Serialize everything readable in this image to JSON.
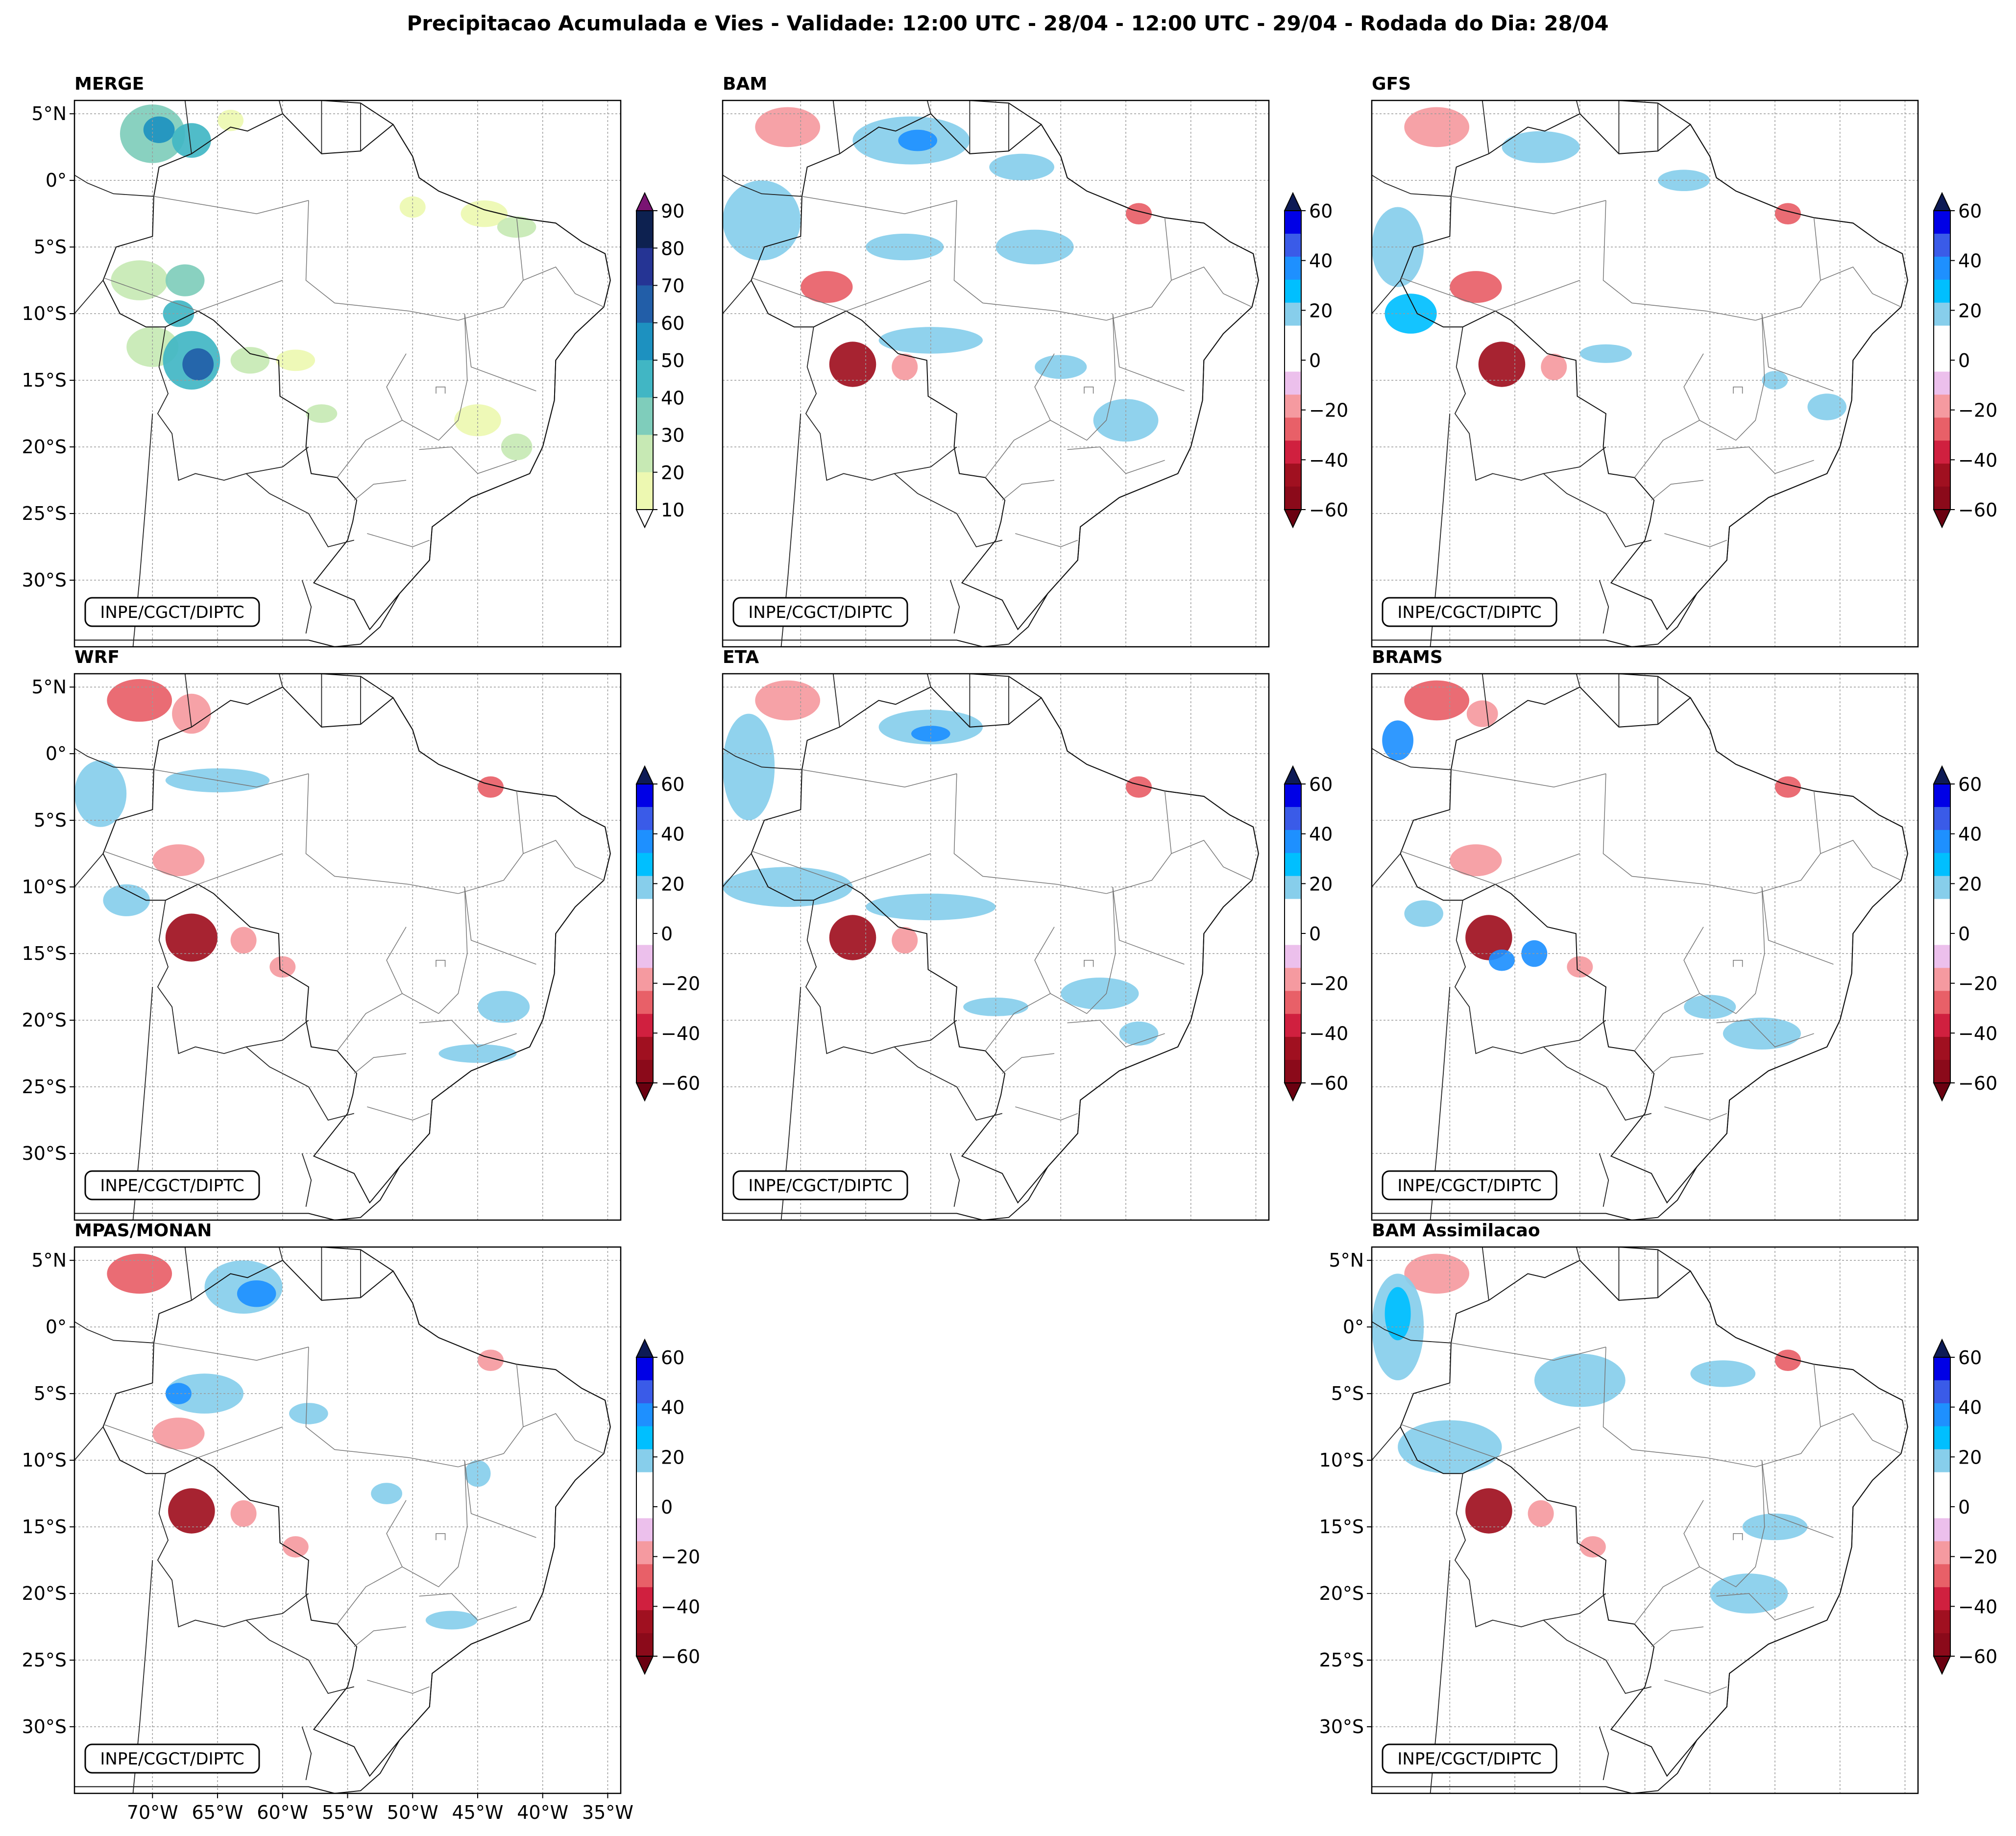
{
  "figure": {
    "title": "Precipitacao Acumulada e Vies - Validade: 12:00 UTC - 28/04 - 12:00 UTC - 29/04 - Rodada do Dia: 28/04",
    "credit": "INPE/CGCT/DIPTC"
  },
  "map_extent": {
    "lon": [
      -76,
      -34
    ],
    "lat": [
      6,
      -35
    ]
  },
  "lat_ticks": [
    {
      "value": 5,
      "label": "5°N"
    },
    {
      "value": 0,
      "label": "0°"
    },
    {
      "value": -5,
      "label": "5°S"
    },
    {
      "value": -10,
      "label": "10°S"
    },
    {
      "value": -15,
      "label": "15°S"
    },
    {
      "value": -20,
      "label": "20°S"
    },
    {
      "value": -25,
      "label": "25°S"
    },
    {
      "value": -30,
      "label": "30°S"
    }
  ],
  "lon_ticks": [
    {
      "value": -70,
      "label": "70°W"
    },
    {
      "value": -65,
      "label": "65°W"
    },
    {
      "value": -60,
      "label": "60°W"
    },
    {
      "value": -55,
      "label": "55°W"
    },
    {
      "value": -50,
      "label": "50°W"
    },
    {
      "value": -45,
      "label": "45°W"
    },
    {
      "value": -40,
      "label": "40°W"
    },
    {
      "value": -35,
      "label": "35°W"
    }
  ],
  "colorbars": {
    "precip": {
      "labels": [
        "90",
        "80",
        "70",
        "60",
        "50",
        "40",
        "30",
        "20",
        "10"
      ],
      "colors": [
        "#0d2150",
        "#253494",
        "#225ea8",
        "#1d91c0",
        "#41b6c4",
        "#7fcdbb",
        "#c7e9b4",
        "#edf8b1"
      ],
      "over": "#7a1473",
      "under": "#ffffff"
    },
    "bias": {
      "labels": [
        "60",
        "40",
        "20",
        "0",
        "−20",
        "−40",
        "−60"
      ],
      "colors": [
        "#0000e6",
        "#3a5be8",
        "#1e90ff",
        "#00bfff",
        "#87ceeb",
        "#ffffff",
        "#ffffff",
        "#ecc0ec",
        "#f59aa0",
        "#e86068",
        "#d0203f",
        "#a01020",
        "#8b0a1a"
      ],
      "over": "#0d1a55",
      "under": "#6a0010"
    }
  },
  "panels": [
    {
      "id": "merge",
      "title": "MERGE",
      "cbar": "precip",
      "show_lat": true,
      "show_lon": false,
      "blobs": [
        {
          "lon": -70,
          "lat": 3.5,
          "rx": 2.5,
          "ry": 2.2,
          "c": "#7fcdbb"
        },
        {
          "lon": -69.5,
          "lat": 3.8,
          "rx": 1.2,
          "ry": 1,
          "c": "#1d91c0"
        },
        {
          "lon": -67,
          "lat": 3,
          "rx": 1.5,
          "ry": 1.3,
          "c": "#41b6c4"
        },
        {
          "lon": -71,
          "lat": -7.5,
          "rx": 2.2,
          "ry": 1.5,
          "c": "#c7e9b4"
        },
        {
          "lon": -67.5,
          "lat": -7.5,
          "rx": 1.5,
          "ry": 1.2,
          "c": "#7fcdbb"
        },
        {
          "lon": -68,
          "lat": -10,
          "rx": 1.2,
          "ry": 1,
          "c": "#41b6c4"
        },
        {
          "lon": -70,
          "lat": -12.5,
          "rx": 2,
          "ry": 1.5,
          "c": "#c7e9b4"
        },
        {
          "lon": -67,
          "lat": -13.5,
          "rx": 2.2,
          "ry": 2.2,
          "c": "#41b6c4"
        },
        {
          "lon": -66.5,
          "lat": -13.8,
          "rx": 1.2,
          "ry": 1.2,
          "c": "#225ea8"
        },
        {
          "lon": -62.5,
          "lat": -13.5,
          "rx": 1.5,
          "ry": 1,
          "c": "#c7e9b4"
        },
        {
          "lon": -57,
          "lat": -17.5,
          "rx": 1.2,
          "ry": 0.7,
          "c": "#c7e9b4"
        },
        {
          "lon": -44.5,
          "lat": -2.5,
          "rx": 1.8,
          "ry": 1,
          "c": "#edf8b1"
        },
        {
          "lon": -42,
          "lat": -3.5,
          "rx": 1.5,
          "ry": 0.8,
          "c": "#c7e9b4"
        },
        {
          "lon": -45,
          "lat": -18,
          "rx": 1.8,
          "ry": 1.2,
          "c": "#edf8b1"
        },
        {
          "lon": -42,
          "lat": -20,
          "rx": 1.2,
          "ry": 1,
          "c": "#c7e9b4"
        },
        {
          "lon": -59,
          "lat": -13.5,
          "rx": 1.5,
          "ry": 0.8,
          "c": "#edf8b1"
        },
        {
          "lon": -50,
          "lat": -2,
          "rx": 1,
          "ry": 0.8,
          "c": "#edf8b1"
        },
        {
          "lon": -64,
          "lat": 4.5,
          "rx": 1,
          "ry": 0.8,
          "c": "#edf8b1"
        }
      ]
    },
    {
      "id": "bam",
      "title": "BAM",
      "cbar": "bias",
      "show_lat": false,
      "show_lon": false,
      "blobs": [
        {
          "lon": -71,
          "lat": 4,
          "rx": 2.5,
          "ry": 1.5,
          "c": "#f59aa0"
        },
        {
          "lon": -61.5,
          "lat": 3,
          "rx": 4.5,
          "ry": 1.8,
          "c": "#87ceeb"
        },
        {
          "lon": -61,
          "lat": 3,
          "rx": 1.5,
          "ry": 0.8,
          "c": "#1e90ff"
        },
        {
          "lon": -73,
          "lat": -3,
          "rx": 3,
          "ry": 3,
          "c": "#87ceeb"
        },
        {
          "lon": -68,
          "lat": -8,
          "rx": 2,
          "ry": 1.2,
          "c": "#e86068"
        },
        {
          "lon": -66,
          "lat": -13.8,
          "rx": 1.8,
          "ry": 1.7,
          "c": "#a01020"
        },
        {
          "lon": -62,
          "lat": -14,
          "rx": 1,
          "ry": 1,
          "c": "#f59aa0"
        },
        {
          "lon": -52,
          "lat": -5,
          "rx": 3,
          "ry": 1.3,
          "c": "#87ceeb"
        },
        {
          "lon": -62,
          "lat": -5,
          "rx": 3,
          "ry": 1,
          "c": "#87ceeb"
        },
        {
          "lon": -60,
          "lat": -12,
          "rx": 4,
          "ry": 1,
          "c": "#87ceeb"
        },
        {
          "lon": -45,
          "lat": -18,
          "rx": 2.5,
          "ry": 1.6,
          "c": "#87ceeb"
        },
        {
          "lon": -50,
          "lat": -14,
          "rx": 2,
          "ry": 0.9,
          "c": "#87ceeb"
        },
        {
          "lon": -44,
          "lat": -2.5,
          "rx": 1,
          "ry": 0.8,
          "c": "#e86068"
        },
        {
          "lon": -53,
          "lat": 1,
          "rx": 2.5,
          "ry": 1,
          "c": "#87ceeb"
        }
      ]
    },
    {
      "id": "gfs",
      "title": "GFS",
      "cbar": "bias",
      "show_lat": false,
      "show_lon": false,
      "blobs": [
        {
          "lon": -71,
          "lat": 4,
          "rx": 2.5,
          "ry": 1.5,
          "c": "#f59aa0"
        },
        {
          "lon": -63,
          "lat": 2.5,
          "rx": 3,
          "ry": 1.2,
          "c": "#87ceeb"
        },
        {
          "lon": -74,
          "lat": -5,
          "rx": 2,
          "ry": 3,
          "c": "#87ceeb"
        },
        {
          "lon": -73,
          "lat": -10,
          "rx": 2,
          "ry": 1.5,
          "c": "#00bfff"
        },
        {
          "lon": -68,
          "lat": -8,
          "rx": 2,
          "ry": 1.2,
          "c": "#e86068"
        },
        {
          "lon": -66,
          "lat": -13.8,
          "rx": 1.8,
          "ry": 1.7,
          "c": "#a01020"
        },
        {
          "lon": -62,
          "lat": -14,
          "rx": 1,
          "ry": 1,
          "c": "#f59aa0"
        },
        {
          "lon": -58,
          "lat": -13,
          "rx": 2,
          "ry": 0.7,
          "c": "#87ceeb"
        },
        {
          "lon": -52,
          "lat": 0,
          "rx": 2,
          "ry": 0.8,
          "c": "#87ceeb"
        },
        {
          "lon": -44,
          "lat": -2.5,
          "rx": 1,
          "ry": 0.8,
          "c": "#e86068"
        },
        {
          "lon": -41,
          "lat": -17,
          "rx": 1.5,
          "ry": 1,
          "c": "#87ceeb"
        },
        {
          "lon": -45,
          "lat": -15,
          "rx": 1,
          "ry": 0.7,
          "c": "#87ceeb"
        }
      ]
    },
    {
      "id": "wrf",
      "title": "WRF",
      "cbar": "bias",
      "show_lat": true,
      "show_lon": false,
      "blobs": [
        {
          "lon": -71,
          "lat": 4,
          "rx": 2.5,
          "ry": 1.6,
          "c": "#e86068"
        },
        {
          "lon": -67,
          "lat": 3,
          "rx": 1.5,
          "ry": 1.5,
          "c": "#f59aa0"
        },
        {
          "lon": -74,
          "lat": -3,
          "rx": 2,
          "ry": 2.5,
          "c": "#87ceeb"
        },
        {
          "lon": -65,
          "lat": -2,
          "rx": 4,
          "ry": 0.9,
          "c": "#87ceeb"
        },
        {
          "lon": -68,
          "lat": -8,
          "rx": 2,
          "ry": 1.2,
          "c": "#f59aa0"
        },
        {
          "lon": -67,
          "lat": -13.8,
          "rx": 2,
          "ry": 1.8,
          "c": "#a01020"
        },
        {
          "lon": -63,
          "lat": -14,
          "rx": 1,
          "ry": 1,
          "c": "#f59aa0"
        },
        {
          "lon": -72,
          "lat": -11,
          "rx": 1.8,
          "ry": 1.2,
          "c": "#87ceeb"
        },
        {
          "lon": -43,
          "lat": -19,
          "rx": 2,
          "ry": 1.2,
          "c": "#87ceeb"
        },
        {
          "lon": -45,
          "lat": -22.5,
          "rx": 3,
          "ry": 0.7,
          "c": "#87ceeb"
        },
        {
          "lon": -44,
          "lat": -2.5,
          "rx": 1,
          "ry": 0.8,
          "c": "#e86068"
        },
        {
          "lon": -60,
          "lat": -16,
          "rx": 1,
          "ry": 0.8,
          "c": "#f59aa0"
        }
      ]
    },
    {
      "id": "eta",
      "title": "ETA",
      "cbar": "bias",
      "show_lat": false,
      "show_lon": false,
      "blobs": [
        {
          "lon": -71,
          "lat": 4,
          "rx": 2.5,
          "ry": 1.5,
          "c": "#f59aa0"
        },
        {
          "lon": -74,
          "lat": -1,
          "rx": 2,
          "ry": 4,
          "c": "#87ceeb"
        },
        {
          "lon": -60,
          "lat": 2,
          "rx": 4,
          "ry": 1.3,
          "c": "#87ceeb"
        },
        {
          "lon": -60,
          "lat": 1.5,
          "rx": 1.5,
          "ry": 0.6,
          "c": "#1e90ff"
        },
        {
          "lon": -71,
          "lat": -10,
          "rx": 5,
          "ry": 1.5,
          "c": "#87ceeb"
        },
        {
          "lon": -66,
          "lat": -13.8,
          "rx": 1.8,
          "ry": 1.7,
          "c": "#a01020"
        },
        {
          "lon": -62,
          "lat": -14,
          "rx": 1,
          "ry": 1,
          "c": "#f59aa0"
        },
        {
          "lon": -60,
          "lat": -11.5,
          "rx": 5,
          "ry": 1,
          "c": "#87ceeb"
        },
        {
          "lon": -47,
          "lat": -18,
          "rx": 3,
          "ry": 1.2,
          "c": "#87ceeb"
        },
        {
          "lon": -44,
          "lat": -2.5,
          "rx": 1,
          "ry": 0.8,
          "c": "#e86068"
        },
        {
          "lon": -55,
          "lat": -19,
          "rx": 2.5,
          "ry": 0.7,
          "c": "#87ceeb"
        },
        {
          "lon": -44,
          "lat": -21,
          "rx": 1.5,
          "ry": 0.9,
          "c": "#87ceeb"
        }
      ]
    },
    {
      "id": "brams",
      "title": "BRAMS",
      "cbar": "bias",
      "show_lat": false,
      "show_lon": false,
      "blobs": [
        {
          "lon": -71,
          "lat": 4,
          "rx": 2.5,
          "ry": 1.5,
          "c": "#e86068"
        },
        {
          "lon": -67.5,
          "lat": 3,
          "rx": 1.2,
          "ry": 1,
          "c": "#f59aa0"
        },
        {
          "lon": -74,
          "lat": 1,
          "rx": 1.2,
          "ry": 1.5,
          "c": "#1e90ff"
        },
        {
          "lon": -68,
          "lat": -8,
          "rx": 2,
          "ry": 1.2,
          "c": "#f59aa0"
        },
        {
          "lon": -67,
          "lat": -13.8,
          "rx": 1.8,
          "ry": 1.7,
          "c": "#a01020"
        },
        {
          "lon": -63.5,
          "lat": -15,
          "rx": 1,
          "ry": 1,
          "c": "#1e90ff"
        },
        {
          "lon": -66,
          "lat": -15.5,
          "rx": 1,
          "ry": 0.8,
          "c": "#1e90ff"
        },
        {
          "lon": -60,
          "lat": -16,
          "rx": 1,
          "ry": 0.8,
          "c": "#f59aa0"
        },
        {
          "lon": -46,
          "lat": -21,
          "rx": 3,
          "ry": 1.2,
          "c": "#87ceeb"
        },
        {
          "lon": -50,
          "lat": -19,
          "rx": 2,
          "ry": 0.9,
          "c": "#87ceeb"
        },
        {
          "lon": -44,
          "lat": -2.5,
          "rx": 1,
          "ry": 0.8,
          "c": "#e86068"
        },
        {
          "lon": -72,
          "lat": -12,
          "rx": 1.5,
          "ry": 1,
          "c": "#87ceeb"
        }
      ]
    },
    {
      "id": "mpas",
      "title": "MPAS/MONAN",
      "cbar": "bias",
      "show_lat": true,
      "show_lon": true,
      "blobs": [
        {
          "lon": -71,
          "lat": 4,
          "rx": 2.5,
          "ry": 1.5,
          "c": "#e86068"
        },
        {
          "lon": -63,
          "lat": 3,
          "rx": 3,
          "ry": 2,
          "c": "#87ceeb"
        },
        {
          "lon": -62,
          "lat": 2.5,
          "rx": 1.5,
          "ry": 1,
          "c": "#1e90ff"
        },
        {
          "lon": -66,
          "lat": -5,
          "rx": 3,
          "ry": 1.5,
          "c": "#87ceeb"
        },
        {
          "lon": -68,
          "lat": -5,
          "rx": 1,
          "ry": 0.8,
          "c": "#1e90ff"
        },
        {
          "lon": -68,
          "lat": -8,
          "rx": 2,
          "ry": 1.2,
          "c": "#f59aa0"
        },
        {
          "lon": -67,
          "lat": -13.8,
          "rx": 1.8,
          "ry": 1.7,
          "c": "#a01020"
        },
        {
          "lon": -63,
          "lat": -14,
          "rx": 1,
          "ry": 1,
          "c": "#f59aa0"
        },
        {
          "lon": -58,
          "lat": -6.5,
          "rx": 1.5,
          "ry": 0.8,
          "c": "#87ceeb"
        },
        {
          "lon": -52,
          "lat": -12.5,
          "rx": 1.2,
          "ry": 0.8,
          "c": "#87ceeb"
        },
        {
          "lon": -45,
          "lat": -11,
          "rx": 1,
          "ry": 1,
          "c": "#87ceeb"
        },
        {
          "lon": -47,
          "lat": -22,
          "rx": 2,
          "ry": 0.7,
          "c": "#87ceeb"
        },
        {
          "lon": -44,
          "lat": -2.5,
          "rx": 1,
          "ry": 0.8,
          "c": "#f59aa0"
        },
        {
          "lon": -59,
          "lat": -16.5,
          "rx": 1,
          "ry": 0.8,
          "c": "#f59aa0"
        }
      ]
    },
    {
      "id": "bamassim",
      "title": "BAM Assimilacao",
      "cbar": "bias",
      "show_lat": true,
      "show_lon": false,
      "blobs": [
        {
          "lon": -71,
          "lat": 4,
          "rx": 2.5,
          "ry": 1.5,
          "c": "#f59aa0"
        },
        {
          "lon": -74,
          "lat": 0,
          "rx": 2,
          "ry": 4,
          "c": "#87ceeb"
        },
        {
          "lon": -74,
          "lat": 1,
          "rx": 1,
          "ry": 2,
          "c": "#00bfff"
        },
        {
          "lon": -60,
          "lat": -4,
          "rx": 3.5,
          "ry": 2,
          "c": "#87ceeb"
        },
        {
          "lon": -49,
          "lat": -3.5,
          "rx": 2.5,
          "ry": 1,
          "c": "#87ceeb"
        },
        {
          "lon": -70,
          "lat": -9,
          "rx": 4,
          "ry": 2,
          "c": "#87ceeb"
        },
        {
          "lon": -67,
          "lat": -13.8,
          "rx": 1.8,
          "ry": 1.7,
          "c": "#a01020"
        },
        {
          "lon": -63,
          "lat": -14,
          "rx": 1,
          "ry": 1,
          "c": "#f59aa0"
        },
        {
          "lon": -47,
          "lat": -20,
          "rx": 3,
          "ry": 1.5,
          "c": "#87ceeb"
        },
        {
          "lon": -45,
          "lat": -15,
          "rx": 2.5,
          "ry": 1,
          "c": "#87ceeb"
        },
        {
          "lon": -44,
          "lat": -2.5,
          "rx": 1,
          "ry": 0.8,
          "c": "#e86068"
        },
        {
          "lon": -59,
          "lat": -16.5,
          "rx": 1,
          "ry": 0.8,
          "c": "#f59aa0"
        }
      ]
    }
  ]
}
